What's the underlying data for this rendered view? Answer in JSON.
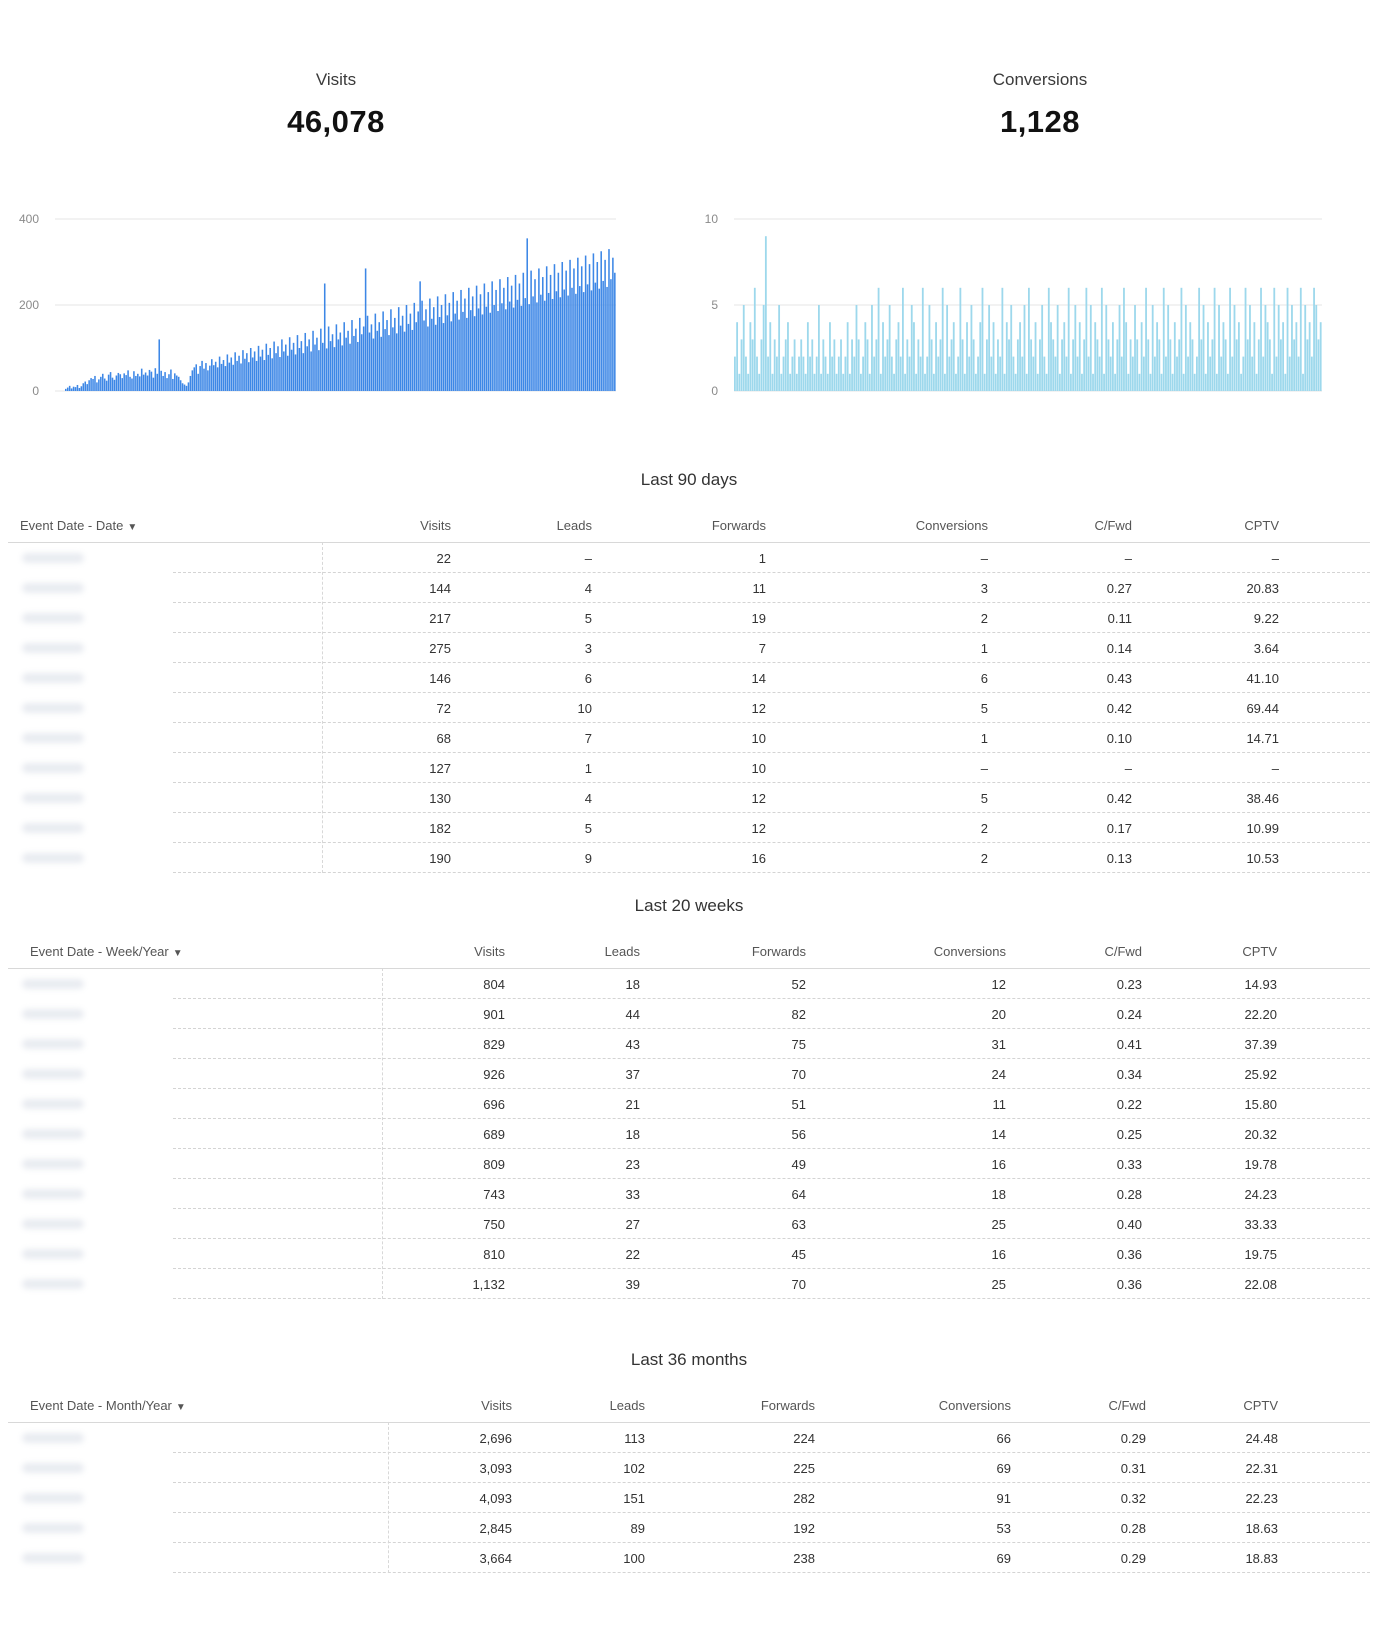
{
  "kpis": {
    "visits": {
      "label": "Visits",
      "value": "46,078"
    },
    "conversions": {
      "label": "Conversions",
      "value": "1,128"
    }
  },
  "colors": {
    "visits_bar": "#3d87e6",
    "conversions_bar": "#9dd8ec"
  },
  "chart_data": [
    {
      "type": "bar",
      "series": [
        {
          "values": [
            5,
            8,
            12,
            6,
            10,
            9,
            14,
            7,
            11,
            18,
            22,
            16,
            25,
            30,
            28,
            35,
            20,
            27,
            33,
            40,
            29,
            24,
            38,
            44,
            31,
            26,
            36,
            42,
            39,
            30,
            41,
            37,
            48,
            33,
            29,
            46,
            35,
            40,
            34,
            52,
            38,
            43,
            36,
            49,
            45,
            31,
            53,
            40,
            120,
            47,
            35,
            44,
            30,
            39,
            50,
            28,
            41,
            36,
            33,
            25,
            18,
            15,
            12,
            20,
            35,
            48,
            55,
            62,
            40,
            58,
            70,
            52,
            65,
            48,
            59,
            74,
            60,
            68,
            55,
            80,
            63,
            72,
            58,
            85,
            66,
            78,
            61,
            90,
            70,
            82,
            64,
            95,
            75,
            88,
            67,
            100,
            78,
            92,
            70,
            105,
            80,
            96,
            72,
            110,
            84,
            100,
            76,
            115,
            88,
            104,
            79,
            120,
            92,
            108,
            82,
            125,
            96,
            112,
            85,
            130,
            100,
            116,
            88,
            135,
            104,
            120,
            92,
            140,
            108,
            124,
            95,
            145,
            112,
            250,
            99,
            150,
            116,
            132,
            102,
            155,
            120,
            136,
            106,
            160,
            124,
            140,
            110,
            165,
            128,
            145,
            114,
            170,
            132,
            150,
            285,
            175,
            136,
            155,
            122,
            180,
            140,
            160,
            126,
            185,
            144,
            165,
            130,
            190,
            148,
            170,
            134,
            195,
            152,
            175,
            138,
            200,
            156,
            180,
            142,
            205,
            160,
            185,
            255,
            210,
            164,
            190,
            150,
            215,
            168,
            195,
            154,
            220,
            172,
            200,
            158,
            225,
            176,
            205,
            162,
            230,
            180,
            210,
            166,
            235,
            184,
            215,
            170,
            240,
            188,
            220,
            174,
            245,
            192,
            225,
            178,
            250,
            196,
            230,
            182,
            255,
            200,
            235,
            186,
            260,
            204,
            240,
            190,
            265,
            208,
            245,
            194,
            270,
            212,
            250,
            198,
            275,
            216,
            355,
            202,
            280,
            220,
            260,
            206,
            285,
            224,
            265,
            210,
            290,
            228,
            270,
            214,
            295,
            232,
            275,
            218,
            300,
            236,
            280,
            222,
            305,
            240,
            285,
            226,
            310,
            244,
            290,
            230,
            315,
            248,
            295,
            234,
            320,
            252,
            300,
            238,
            325,
            256,
            305,
            242,
            330,
            260,
            310,
            275
          ]
        }
      ],
      "yticks": [
        0,
        200,
        400
      ],
      "ylim": [
        0,
        400
      ]
    },
    {
      "type": "bar",
      "series": [
        {
          "values": [
            2,
            4,
            1,
            3,
            5,
            2,
            1,
            4,
            3,
            6,
            2,
            1,
            3,
            5,
            9,
            2,
            4,
            1,
            3,
            2,
            5,
            1,
            2,
            3,
            4,
            1,
            2,
            3,
            1,
            2,
            3,
            2,
            1,
            4,
            2,
            3,
            1,
            2,
            5,
            1,
            3,
            2,
            1,
            4,
            2,
            3,
            1,
            2,
            3,
            1,
            2,
            4,
            1,
            3,
            2,
            5,
            3,
            1,
            2,
            4,
            3,
            1,
            5,
            2,
            3,
            6,
            1,
            4,
            2,
            3,
            5,
            2,
            1,
            3,
            4,
            2,
            6,
            1,
            3,
            2,
            5,
            4,
            1,
            3,
            2,
            6,
            1,
            2,
            5,
            3,
            1,
            4,
            2,
            3,
            6,
            1,
            5,
            2,
            3,
            4,
            1,
            2,
            6,
            3,
            1,
            4,
            2,
            5,
            3,
            1,
            2,
            4,
            6,
            1,
            3,
            5,
            2,
            4,
            1,
            3,
            2,
            6,
            1,
            4,
            3,
            5,
            2,
            1,
            3,
            4,
            2,
            5,
            1,
            6,
            3,
            2,
            4,
            1,
            3,
            5,
            2,
            1,
            6,
            4,
            3,
            2,
            5,
            1,
            3,
            4,
            2,
            6,
            1,
            3,
            5,
            2,
            4,
            1,
            3,
            6,
            2,
            5,
            1,
            4,
            3,
            2,
            6,
            1,
            5,
            3,
            2,
            4,
            1,
            3,
            5,
            2,
            6,
            4,
            1,
            3,
            2,
            5,
            3,
            1,
            4,
            2,
            6,
            3,
            1,
            5,
            2,
            4,
            3,
            1,
            6,
            2,
            5,
            3,
            1,
            4,
            2,
            3,
            6,
            1,
            5,
            2,
            4,
            3,
            1,
            2,
            6,
            3,
            5,
            1,
            4,
            2,
            3,
            6,
            1,
            5,
            2,
            4,
            3,
            1,
            6,
            2,
            5,
            3,
            4,
            1,
            2,
            6,
            3,
            5,
            2,
            4,
            1,
            3,
            6,
            2,
            5,
            4,
            3,
            1,
            6,
            2,
            5,
            3,
            4,
            1,
            6,
            2,
            5,
            3,
            4,
            2,
            6,
            1,
            5,
            3,
            4,
            2,
            6,
            5,
            3,
            4
          ]
        }
      ],
      "yticks": [
        0,
        5,
        10
      ],
      "ylim": [
        0,
        10
      ]
    }
  ],
  "tables": [
    {
      "title": "Last 90 days",
      "first_col": "Event Date - Date",
      "columns": [
        "Visits",
        "Leads",
        "Forwards",
        "Conversions",
        "C/Fwd",
        "CPTV"
      ],
      "rows": [
        [
          "22",
          "–",
          "1",
          "–",
          "–",
          "–"
        ],
        [
          "144",
          "4",
          "11",
          "3",
          "0.27",
          "20.83"
        ],
        [
          "217",
          "5",
          "19",
          "2",
          "0.11",
          "9.22"
        ],
        [
          "275",
          "3",
          "7",
          "1",
          "0.14",
          "3.64"
        ],
        [
          "146",
          "6",
          "14",
          "6",
          "0.43",
          "41.10"
        ],
        [
          "72",
          "10",
          "12",
          "5",
          "0.42",
          "69.44"
        ],
        [
          "68",
          "7",
          "10",
          "1",
          "0.10",
          "14.71"
        ],
        [
          "127",
          "1",
          "10",
          "–",
          "–",
          "–"
        ],
        [
          "130",
          "4",
          "12",
          "5",
          "0.42",
          "38.46"
        ],
        [
          "182",
          "5",
          "12",
          "2",
          "0.17",
          "10.99"
        ],
        [
          "190",
          "9",
          "16",
          "2",
          "0.13",
          "10.53"
        ]
      ]
    },
    {
      "title": "Last 20 weeks",
      "first_col": "Event Date - Week/Year",
      "columns": [
        "Visits",
        "Leads",
        "Forwards",
        "Conversions",
        "C/Fwd",
        "CPTV"
      ],
      "rows": [
        [
          "804",
          "18",
          "52",
          "12",
          "0.23",
          "14.93"
        ],
        [
          "901",
          "44",
          "82",
          "20",
          "0.24",
          "22.20"
        ],
        [
          "829",
          "43",
          "75",
          "31",
          "0.41",
          "37.39"
        ],
        [
          "926",
          "37",
          "70",
          "24",
          "0.34",
          "25.92"
        ],
        [
          "696",
          "21",
          "51",
          "11",
          "0.22",
          "15.80"
        ],
        [
          "689",
          "18",
          "56",
          "14",
          "0.25",
          "20.32"
        ],
        [
          "809",
          "23",
          "49",
          "16",
          "0.33",
          "19.78"
        ],
        [
          "743",
          "33",
          "64",
          "18",
          "0.28",
          "24.23"
        ],
        [
          "750",
          "27",
          "63",
          "25",
          "0.40",
          "33.33"
        ],
        [
          "810",
          "22",
          "45",
          "16",
          "0.36",
          "19.75"
        ],
        [
          "1,132",
          "39",
          "70",
          "25",
          "0.36",
          "22.08"
        ]
      ]
    },
    {
      "title": "Last 36 months",
      "first_col": "Event Date - Month/Year",
      "columns": [
        "Visits",
        "Leads",
        "Forwards",
        "Conversions",
        "C/Fwd",
        "CPTV"
      ],
      "rows": [
        [
          "2,696",
          "113",
          "224",
          "66",
          "0.29",
          "24.48"
        ],
        [
          "3,093",
          "102",
          "225",
          "69",
          "0.31",
          "22.31"
        ],
        [
          "4,093",
          "151",
          "282",
          "91",
          "0.32",
          "22.23"
        ],
        [
          "2,845",
          "89",
          "192",
          "53",
          "0.28",
          "18.63"
        ],
        [
          "3,664",
          "100",
          "238",
          "69",
          "0.29",
          "18.83"
        ]
      ]
    }
  ]
}
